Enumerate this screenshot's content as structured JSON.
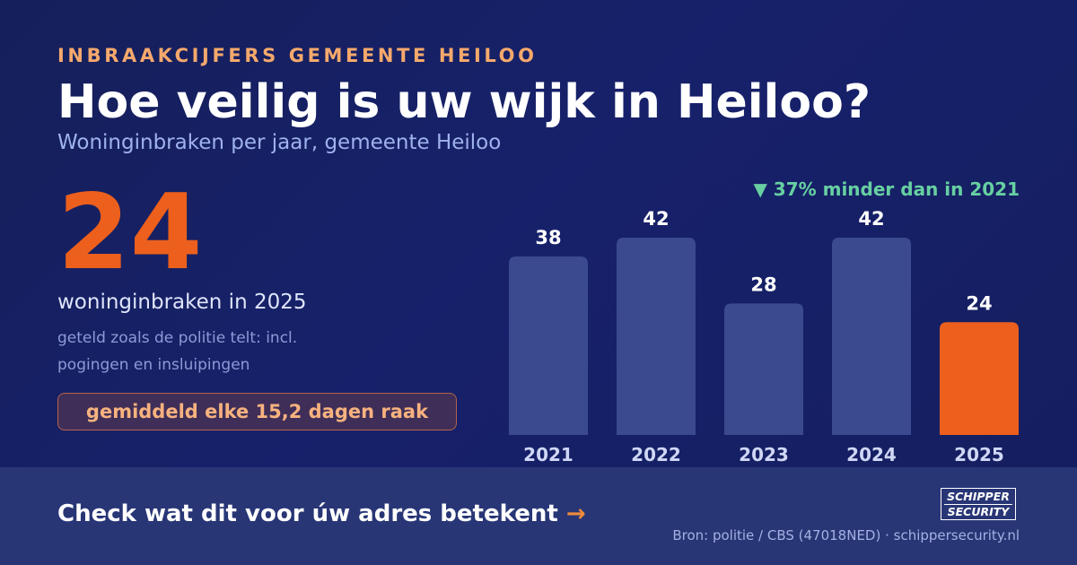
{
  "header": {
    "kicker": "INBRAAKCIJFERS GEMEENTE HEILOO",
    "title": "Hoe veilig is uw wijk in Heiloo?",
    "subtitle": "Woninginbraken per jaar, gemeente Heiloo"
  },
  "highlight": {
    "number": "24",
    "caption": "woninginbraken in 2025",
    "note": "geteld zoals de politie telt: incl. pogingen en insluipingen",
    "pill": "gemiddeld elke 15,2 dagen raak"
  },
  "delta": {
    "icon": "down-triangle-icon",
    "text": "▼ 37% minder dan in 2021"
  },
  "chart_data": {
    "type": "bar",
    "categories": [
      "2021",
      "2022",
      "2023",
      "2024",
      "2025"
    ],
    "values": [
      38,
      42,
      28,
      42,
      24
    ],
    "title": "",
    "xlabel": "",
    "ylabel": "",
    "ylim": [
      0,
      42
    ],
    "grid": false,
    "colors": {
      "default": "#3b4a8f",
      "highlight": "#ec5f1c",
      "value_label": "#ffffff",
      "year_label": "#cfd7f5"
    },
    "highlight_index": 4
  },
  "footer": {
    "cta": "Check wat dit voor úw adres betekent",
    "cta_arrow": "→",
    "logo_line1": "SCHIPPER",
    "logo_line2": "SECURITY",
    "source": "Bron: politie / CBS (47018NED) · schippersecurity.nl"
  }
}
